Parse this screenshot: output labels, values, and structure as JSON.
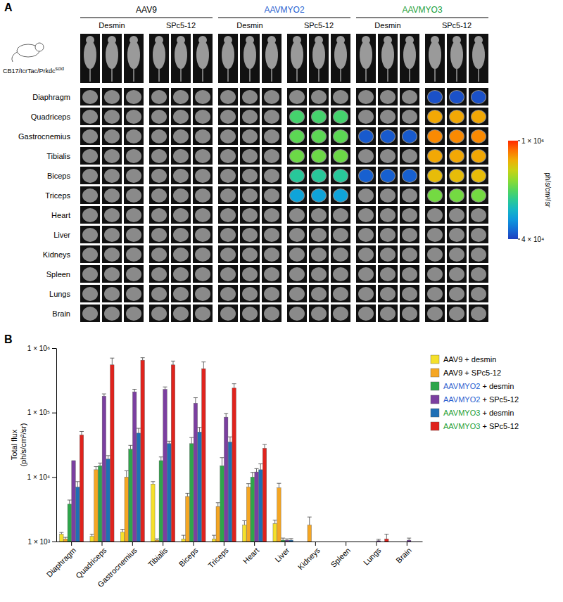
{
  "chart_data": [
    {
      "type": "image_grid",
      "panel": "A",
      "groups": [
        {
          "name": "AAV9",
          "color": "#000000"
        },
        {
          "name": "AAVMYO2",
          "color": "#2a5fd0"
        },
        {
          "name": "AAVMYO3",
          "color": "#22a03a"
        }
      ],
      "promoters": [
        "Desmin",
        "SPc5-12"
      ],
      "replicates": 3,
      "strain": "CB17/IcrTac/Prkdc",
      "strain_superscript": "scid",
      "rows": [
        "Diaphragm",
        "Quadriceps",
        "Gastrocnemius",
        "Tibialis",
        "Biceps",
        "Triceps",
        "Heart",
        "Liver",
        "Kidneys",
        "Spleen",
        "Lungs",
        "Brain"
      ],
      "colorbar": {
        "range": [
          40000,
          1000000
        ],
        "ticks": [
          {
            "value": 1000000,
            "label": "1 × 10⁶"
          },
          {
            "value": 40000,
            "label": "4 × 10⁴"
          }
        ],
        "label": "ph/s/cm²/sr",
        "log": true
      }
    },
    {
      "type": "bar",
      "panel": "B",
      "ylabel": [
        "Total flux",
        "(ph/s/cm²/sr)"
      ],
      "categories": [
        "Diaphragm",
        "Quadriceps",
        "Gastrocnemius",
        "Tibialis",
        "Biceps",
        "Triceps",
        "Heart",
        "Liver",
        "Kidneys",
        "Spleen",
        "Lungs",
        "Brain"
      ],
      "log": "y",
      "ylim": [
        1000,
        1000000
      ],
      "yticks": [
        {
          "value": 1000,
          "label": "1 × 10³"
        },
        {
          "value": 10000,
          "label": "1 × 10⁴"
        },
        {
          "value": 100000,
          "label": "1 × 10⁵"
        },
        {
          "value": 1000000,
          "label": "1 × 10⁶"
        }
      ],
      "grid": false,
      "legend": "upper right",
      "series": [
        {
          "name": "AAV9 + desmin",
          "color": "#f5e02a",
          "values": [
            1300,
            1200,
            1400,
            7800,
            1100,
            1100,
            1800,
            1900,
            null,
            null,
            null,
            null
          ],
          "errors": [
            80,
            100,
            150,
            700,
            150,
            150,
            300,
            250,
            null,
            null,
            null,
            null
          ]
        },
        {
          "name": "AAV9 + SPc5-12",
          "color": "#f5a623",
          "values": [
            1100,
            13000,
            10000,
            1050,
            5000,
            3500,
            7000,
            6800,
            1800,
            null,
            null,
            null
          ],
          "errors": [
            60,
            1500,
            2500,
            50,
            600,
            500,
            900,
            1200,
            600,
            null,
            null,
            null
          ]
        },
        {
          "name": "AAVMYO2 + desmin",
          "color": "#2ea64a",
          "values": [
            3800,
            15000,
            27000,
            18000,
            33000,
            15000,
            10000,
            1050,
            null,
            null,
            null,
            null
          ],
          "errors": [
            600,
            1500,
            4000,
            2500,
            8000,
            5000,
            1800,
            80,
            null,
            null,
            null,
            null
          ]
        },
        {
          "name": "AAVMYO2 + SPc5-12",
          "color": "#7b3fa0",
          "values": [
            18000,
            180000,
            210000,
            230000,
            140000,
            85000,
            12000,
            1050,
            null,
            null,
            1030,
            1050
          ],
          "errors": [
            0,
            15000,
            20000,
            20000,
            30000,
            12000,
            1500,
            50,
            null,
            null,
            50,
            80
          ]
        },
        {
          "name": "AAVMYO3 + desmin",
          "color": "#1f6fb5",
          "values": [
            7000,
            19000,
            48000,
            33000,
            50000,
            35000,
            13000,
            1050,
            null,
            null,
            null,
            null
          ],
          "errors": [
            1500,
            2500,
            9000,
            3000,
            9000,
            7000,
            3000,
            60,
            null,
            null,
            null,
            null
          ]
        },
        {
          "name": "AAVMYO3 + SPc5-12",
          "color": "#e0231d",
          "values": [
            45000,
            550000,
            650000,
            550000,
            480000,
            240000,
            28000,
            null,
            null,
            null,
            1100,
            null
          ],
          "errors": [
            6000,
            150000,
            60000,
            80000,
            130000,
            40000,
            4000,
            null,
            null,
            null,
            200,
            null
          ]
        }
      ]
    }
  ]
}
